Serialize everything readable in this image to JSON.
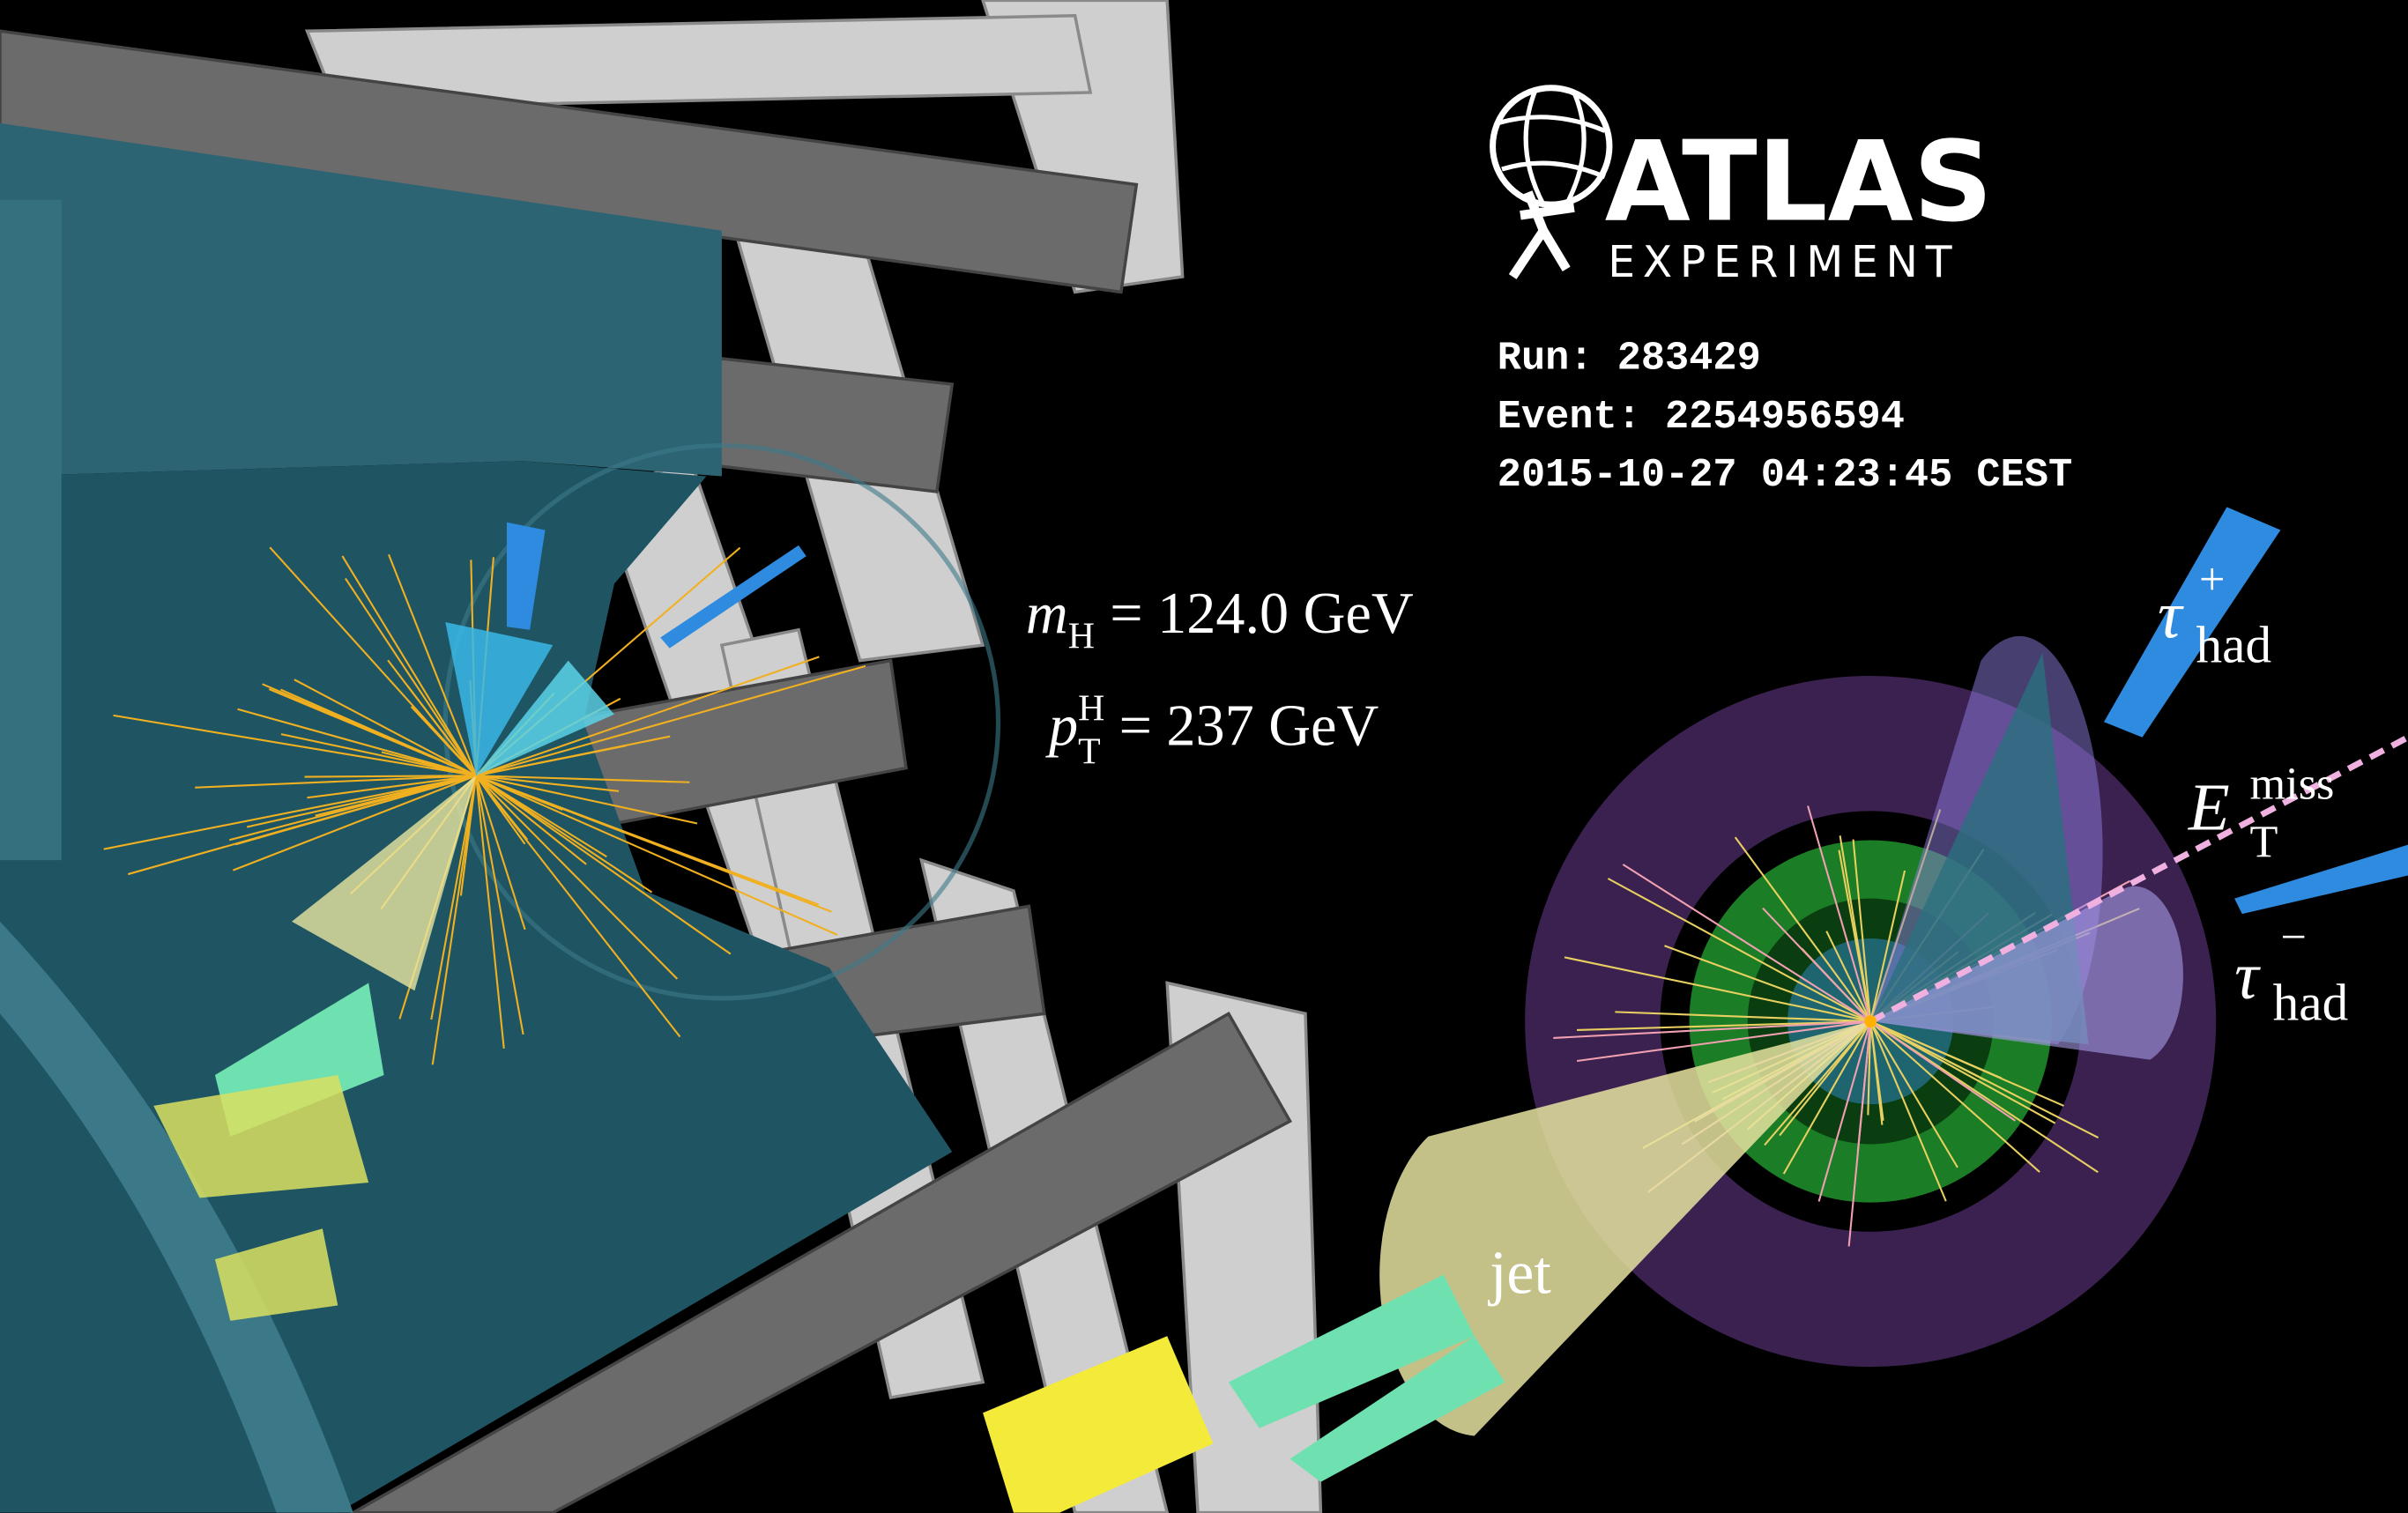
{
  "logo": {
    "title": "ATLAS",
    "subtitle": "EXPERIMENT"
  },
  "event_info": {
    "run": "Run: 283429",
    "event": "Event: 2254956594",
    "timestamp": "2015-10-27 04:23:45 CEST"
  },
  "kinematics": {
    "higgs_mass": {
      "symbol": "m",
      "subscript": "H",
      "equation": "= 124.0 GeV"
    },
    "higgs_pt": {
      "symbol": "p",
      "superscript": "H",
      "subscript": "T",
      "equation": "= 237 GeV"
    }
  },
  "labels": {
    "tau_plus": {
      "symbol": "τ",
      "superscript": "+",
      "subscript": "had"
    },
    "met": {
      "symbol": "E",
      "superscript": "miss",
      "subscript": "T"
    },
    "tau_minus": {
      "symbol": "τ",
      "superscript": "−",
      "subscript": "had"
    },
    "jet": "jet"
  }
}
